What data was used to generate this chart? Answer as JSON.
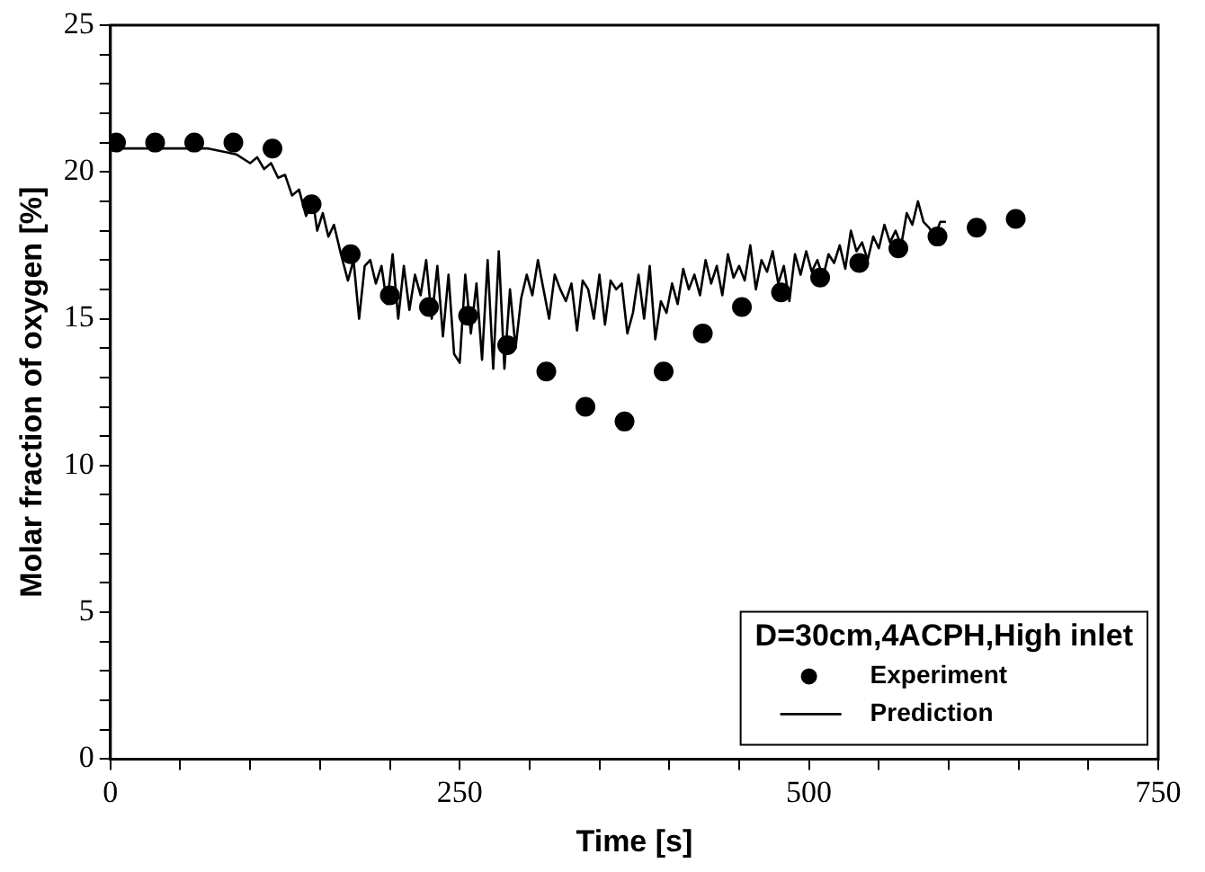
{
  "chart_data": {
    "type": "line",
    "xlabel": "Time [s]",
    "ylabel": "Molar fraction of oxygen [%]",
    "legend_title": "D=30cm,4ACPH,High inlet",
    "legend": "bottom right",
    "grid": false,
    "xlim": [
      0,
      750
    ],
    "ylim": [
      0,
      25
    ],
    "xticks": [
      0,
      {
        "value": 50,
        "label": null
      },
      {
        "value": 100,
        "label": null
      },
      {
        "value": 150,
        "label": null
      },
      {
        "value": 200,
        "label": null
      },
      250,
      {
        "value": 300,
        "label": null
      },
      {
        "value": 350,
        "label": null
      },
      {
        "value": 400,
        "label": null
      },
      {
        "value": 450,
        "label": null
      },
      500,
      {
        "value": 550,
        "label": null
      },
      {
        "value": 600,
        "label": null
      },
      {
        "value": 650,
        "label": null
      },
      {
        "value": 700,
        "label": null
      },
      750
    ],
    "yticks": [
      0,
      {
        "value": 1,
        "label": null
      },
      {
        "value": 2,
        "label": null
      },
      {
        "value": 3,
        "label": null
      },
      {
        "value": 4,
        "label": null
      },
      5,
      {
        "value": 6,
        "label": null
      },
      {
        "value": 7,
        "label": null
      },
      {
        "value": 8,
        "label": null
      },
      {
        "value": 9,
        "label": null
      },
      10,
      {
        "value": 11,
        "label": null
      },
      {
        "value": 12,
        "label": null
      },
      {
        "value": 13,
        "label": null
      },
      {
        "value": 14,
        "label": null
      },
      15,
      {
        "value": 16,
        "label": null
      },
      {
        "value": 17,
        "label": null
      },
      {
        "value": 18,
        "label": null
      },
      {
        "value": 19,
        "label": null
      },
      20,
      {
        "value": 21,
        "label": null
      },
      {
        "value": 22,
        "label": null
      },
      {
        "value": 23,
        "label": null
      },
      {
        "value": 24,
        "label": null
      },
      25
    ],
    "series": [
      {
        "name": "Experiment",
        "type": "scatter",
        "marker": "circle",
        "color": "#000000",
        "x": [
          4,
          32,
          60,
          88,
          116,
          144,
          172,
          200,
          228,
          256,
          284,
          312,
          340,
          368,
          396,
          424,
          452,
          480,
          508,
          536,
          564,
          592,
          620,
          648
        ],
        "values": [
          21.0,
          21.0,
          21.0,
          21.0,
          20.8,
          18.9,
          17.2,
          15.8,
          15.4,
          15.1,
          14.1,
          13.2,
          12.0,
          11.5,
          13.2,
          14.5,
          15.4,
          15.9,
          16.4,
          16.9,
          17.4,
          17.8,
          18.1,
          18.4
        ]
      },
      {
        "name": "Prediction",
        "type": "line",
        "marker": "none",
        "line_style": "solid",
        "color": "#000000",
        "x": [
          0,
          40,
          70,
          90,
          100,
          105,
          110,
          115,
          120,
          125,
          130,
          135,
          140,
          145,
          148,
          152,
          156,
          160,
          165,
          170,
          174,
          178,
          182,
          186,
          190,
          194,
          198,
          202,
          206,
          210,
          214,
          218,
          222,
          226,
          230,
          234,
          238,
          242,
          246,
          250,
          254,
          258,
          262,
          266,
          270,
          274,
          278,
          282,
          286,
          290,
          294,
          298,
          302,
          306,
          310,
          314,
          318,
          322,
          326,
          330,
          334,
          338,
          342,
          346,
          350,
          354,
          358,
          362,
          366,
          370,
          374,
          378,
          382,
          386,
          390,
          394,
          398,
          402,
          406,
          410,
          414,
          418,
          422,
          426,
          430,
          434,
          438,
          442,
          446,
          450,
          454,
          458,
          462,
          466,
          470,
          474,
          478,
          482,
          486,
          490,
          494,
          498,
          502,
          506,
          510,
          514,
          518,
          522,
          526,
          530,
          534,
          538,
          542,
          546,
          550,
          554,
          558,
          562,
          566,
          570,
          574,
          578,
          582,
          586,
          590,
          594,
          598
        ],
        "values": [
          20.8,
          20.8,
          20.8,
          20.6,
          20.3,
          20.5,
          20.1,
          20.3,
          19.8,
          19.9,
          19.2,
          19.4,
          18.5,
          19.0,
          18.0,
          18.6,
          17.8,
          18.2,
          17.2,
          16.3,
          17.0,
          15.0,
          16.8,
          17.0,
          16.2,
          16.8,
          15.5,
          17.2,
          15.0,
          16.8,
          15.3,
          16.5,
          15.8,
          17.0,
          15.0,
          16.8,
          14.4,
          16.5,
          13.8,
          13.5,
          16.5,
          14.5,
          16.2,
          13.6,
          17.0,
          13.3,
          17.3,
          13.3,
          16.0,
          14.0,
          15.7,
          16.5,
          15.8,
          17.0,
          16.0,
          15.0,
          16.5,
          16.0,
          15.6,
          16.2,
          14.6,
          16.3,
          16.0,
          15.0,
          16.5,
          14.8,
          16.3,
          16.0,
          16.2,
          14.5,
          15.2,
          16.5,
          15.0,
          16.8,
          14.3,
          15.6,
          15.2,
          16.2,
          15.5,
          16.7,
          16.0,
          16.5,
          15.8,
          17.0,
          16.2,
          16.8,
          15.8,
          17.2,
          16.4,
          16.8,
          16.3,
          17.5,
          16.0,
          17.0,
          16.6,
          17.3,
          16.2,
          16.8,
          15.6,
          17.2,
          16.5,
          17.3,
          16.6,
          17.0,
          16.4,
          17.2,
          16.9,
          17.5,
          16.7,
          18.0,
          17.3,
          17.6,
          17.0,
          17.8,
          17.4,
          18.2,
          17.6,
          18.0,
          17.5,
          18.6,
          18.2,
          19.0,
          18.3,
          18.1,
          17.8,
          18.3,
          18.3
        ]
      }
    ]
  }
}
